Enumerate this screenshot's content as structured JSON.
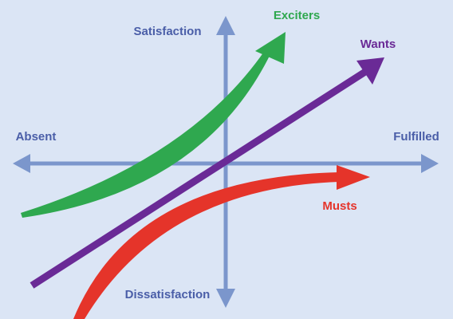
{
  "axes": {
    "top": "Satisfaction",
    "bottom": "Dissatisfaction",
    "left": "Absent",
    "right": "Fulfilled"
  },
  "curves": {
    "exciters": "Exciters",
    "wants": "Wants",
    "musts": "Musts"
  }
}
